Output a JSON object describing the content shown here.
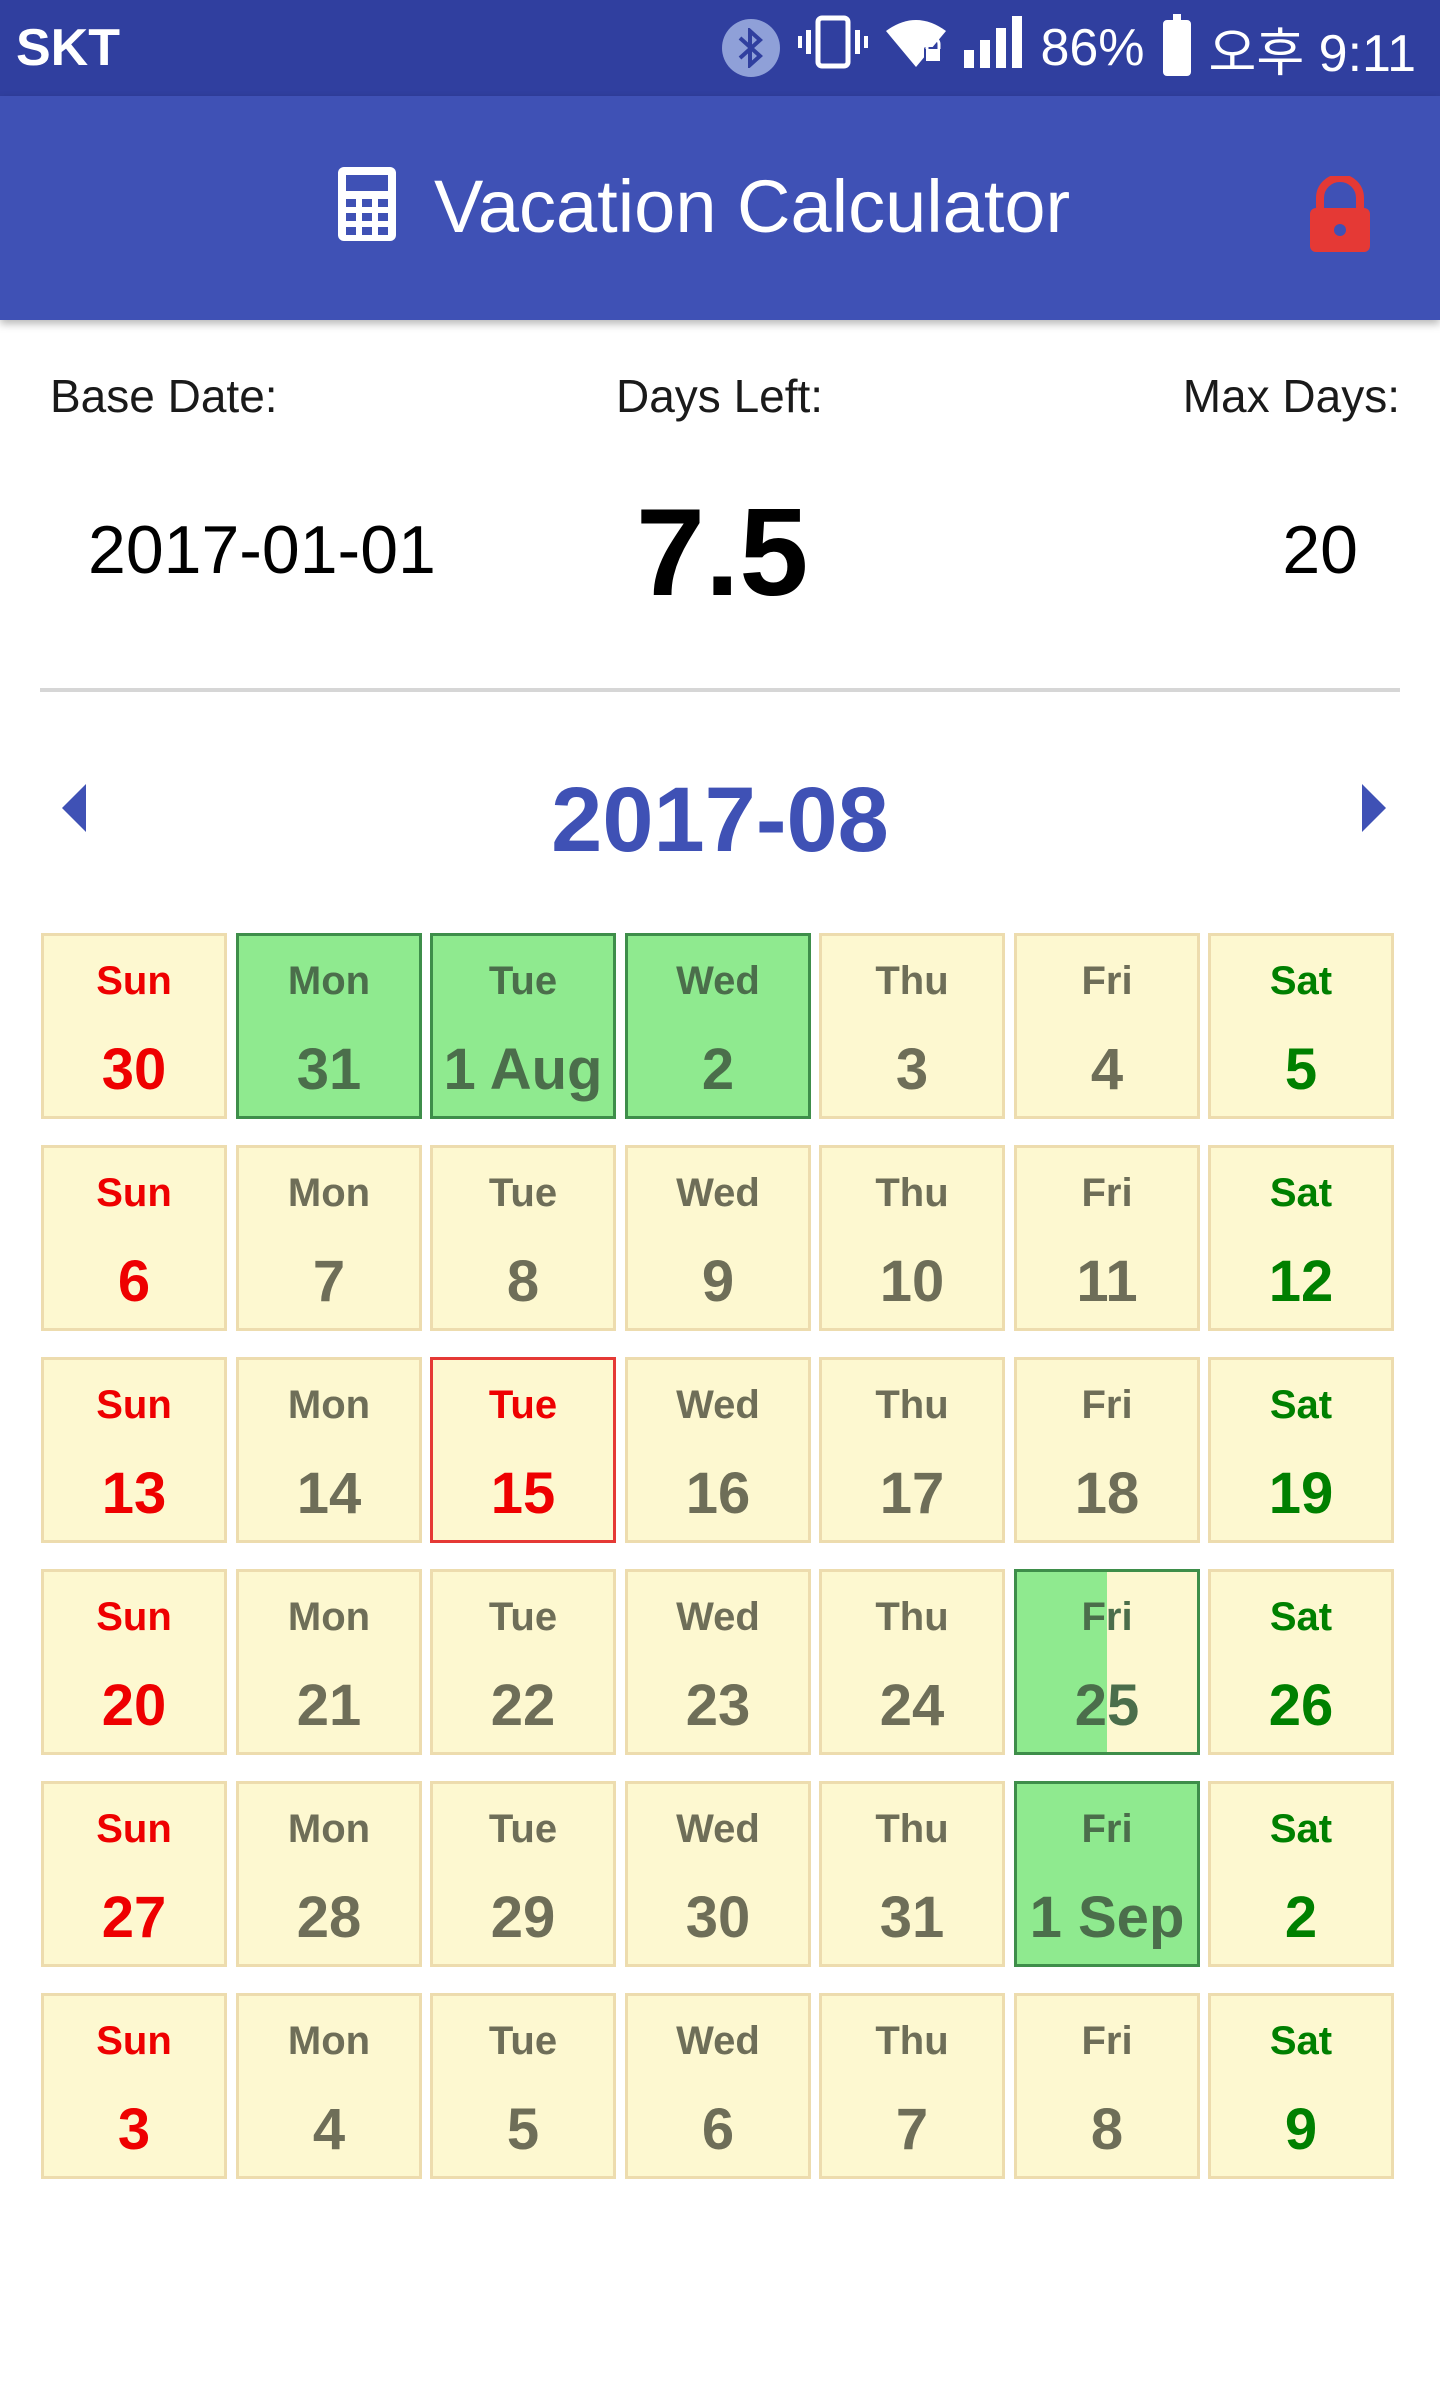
{
  "status_bar": {
    "carrier": "SKT",
    "battery": "86%",
    "time": "오후 9:11"
  },
  "app_bar": {
    "title": "Vacation Calculator",
    "icon": "calculator-icon",
    "action_icon": "lock-icon",
    "color": "#3F51B5",
    "action_color": "#E53935"
  },
  "summary": {
    "base_date_label": "Base Date:",
    "base_date": "2017-01-01",
    "days_left_label": "Days Left:",
    "days_left": "7.5",
    "max_days_label": "Max Days:",
    "max_days": "20"
  },
  "calendar": {
    "month": "2017-08",
    "prev_icon": "arrow-left-icon",
    "next_icon": "arrow-right-icon",
    "colors": {
      "cell_bg": "#FDF8D0",
      "vacation_bg": "#8FEA8F",
      "sunday": "#EE0000",
      "saturday": "#008000",
      "today_border": "#E53935"
    },
    "weeks": [
      [
        {
          "dow": "Sun",
          "day": "30",
          "state": "normal"
        },
        {
          "dow": "Mon",
          "day": "31",
          "state": "vacation"
        },
        {
          "dow": "Tue",
          "day": "1 Aug",
          "state": "vacation"
        },
        {
          "dow": "Wed",
          "day": "2",
          "state": "vacation"
        },
        {
          "dow": "Thu",
          "day": "3",
          "state": "normal"
        },
        {
          "dow": "Fri",
          "day": "4",
          "state": "normal"
        },
        {
          "dow": "Sat",
          "day": "5",
          "state": "normal"
        }
      ],
      [
        {
          "dow": "Sun",
          "day": "6",
          "state": "normal"
        },
        {
          "dow": "Mon",
          "day": "7",
          "state": "normal"
        },
        {
          "dow": "Tue",
          "day": "8",
          "state": "normal"
        },
        {
          "dow": "Wed",
          "day": "9",
          "state": "normal"
        },
        {
          "dow": "Thu",
          "day": "10",
          "state": "normal"
        },
        {
          "dow": "Fri",
          "day": "11",
          "state": "normal"
        },
        {
          "dow": "Sat",
          "day": "12",
          "state": "normal"
        }
      ],
      [
        {
          "dow": "Sun",
          "day": "13",
          "state": "normal"
        },
        {
          "dow": "Mon",
          "day": "14",
          "state": "normal"
        },
        {
          "dow": "Tue",
          "day": "15",
          "state": "today"
        },
        {
          "dow": "Wed",
          "day": "16",
          "state": "normal"
        },
        {
          "dow": "Thu",
          "day": "17",
          "state": "normal"
        },
        {
          "dow": "Fri",
          "day": "18",
          "state": "normal"
        },
        {
          "dow": "Sat",
          "day": "19",
          "state": "normal"
        }
      ],
      [
        {
          "dow": "Sun",
          "day": "20",
          "state": "normal"
        },
        {
          "dow": "Mon",
          "day": "21",
          "state": "normal"
        },
        {
          "dow": "Tue",
          "day": "22",
          "state": "normal"
        },
        {
          "dow": "Wed",
          "day": "23",
          "state": "normal"
        },
        {
          "dow": "Thu",
          "day": "24",
          "state": "normal"
        },
        {
          "dow": "Fri",
          "day": "25",
          "state": "half"
        },
        {
          "dow": "Sat",
          "day": "26",
          "state": "normal"
        }
      ],
      [
        {
          "dow": "Sun",
          "day": "27",
          "state": "normal"
        },
        {
          "dow": "Mon",
          "day": "28",
          "state": "normal"
        },
        {
          "dow": "Tue",
          "day": "29",
          "state": "normal"
        },
        {
          "dow": "Wed",
          "day": "30",
          "state": "normal"
        },
        {
          "dow": "Thu",
          "day": "31",
          "state": "normal"
        },
        {
          "dow": "Fri",
          "day": "1 Sep",
          "state": "vacation"
        },
        {
          "dow": "Sat",
          "day": "2",
          "state": "normal"
        }
      ],
      [
        {
          "dow": "Sun",
          "day": "3",
          "state": "normal"
        },
        {
          "dow": "Mon",
          "day": "4",
          "state": "normal"
        },
        {
          "dow": "Tue",
          "day": "5",
          "state": "normal"
        },
        {
          "dow": "Wed",
          "day": "6",
          "state": "normal"
        },
        {
          "dow": "Thu",
          "day": "7",
          "state": "normal"
        },
        {
          "dow": "Fri",
          "day": "8",
          "state": "normal"
        },
        {
          "dow": "Sat",
          "day": "9",
          "state": "normal"
        }
      ]
    ]
  }
}
